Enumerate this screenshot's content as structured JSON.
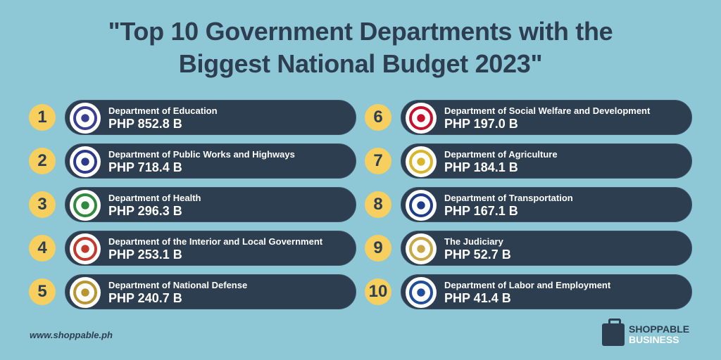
{
  "title": {
    "line1": "\"Top 10 Government Departments with the",
    "line2": "Biggest National Budget 2023\""
  },
  "items": [
    {
      "rank": "1",
      "name": "Department of Education",
      "value": "PHP 852.8 B",
      "logo_color": "#3b3f8f"
    },
    {
      "rank": "2",
      "name": "Department of Public Works and Highways",
      "value": "PHP 718.4 B",
      "logo_color": "#2b3a8c"
    },
    {
      "rank": "3",
      "name": "Department of Health",
      "value": "PHP 296.3 B",
      "logo_color": "#2f8a3e"
    },
    {
      "rank": "4",
      "name": "Department of the Interior and Local Government",
      "value": "PHP 253.1 B",
      "logo_color": "#c23a2a"
    },
    {
      "rank": "5",
      "name": "Department of National Defense",
      "value": "PHP 240.7 B",
      "logo_color": "#b8952e"
    },
    {
      "rank": "6",
      "name": "Department of Social Welfare and Development",
      "value": "PHP 197.0 B",
      "logo_color": "#c8102e"
    },
    {
      "rank": "7",
      "name": "Department of Agriculture",
      "value": "PHP 184.1 B",
      "logo_color": "#d9b52a"
    },
    {
      "rank": "8",
      "name": "Department of Transportation",
      "value": "PHP 167.1 B",
      "logo_color": "#1f3c8c"
    },
    {
      "rank": "9",
      "name": "The Judiciary",
      "value": "PHP 52.7 B",
      "logo_color": "#c9a646"
    },
    {
      "rank": "10",
      "name": "Department of Labor and Employment",
      "value": "PHP 41.4 B",
      "logo_color": "#1f4e9c"
    }
  ],
  "footer": {
    "url": "www.shoppable.ph",
    "brand_line1": "SHOPPABLE",
    "brand_line2": "BUSINESS"
  },
  "colors": {
    "background": "#8ec7d6",
    "pill": "#2d3e50",
    "badge": "#f6cf5f"
  }
}
